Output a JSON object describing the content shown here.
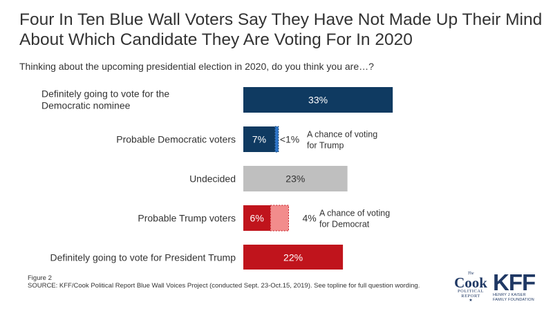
{
  "chart_data": {
    "type": "bar",
    "orientation": "horizontal",
    "title": "Four In Ten Blue Wall Voters Say They Have Not Made Up Their Mind About Which Candidate They Are Voting For In 2020",
    "subtitle": "Thinking about the upcoming presidential election in 2020, do you think you are…?",
    "xlim": [
      0,
      35
    ],
    "grid": false,
    "rows": [
      {
        "label": "Definitely going to vote for the Democratic nominee",
        "segments": [
          {
            "value": 33,
            "label": "33%",
            "color": "#0f3a61",
            "style": "solid"
          }
        ]
      },
      {
        "label": "Probable Democratic voters",
        "segments": [
          {
            "value": 7,
            "label": "7%",
            "color": "#0f3a61",
            "style": "solid"
          },
          {
            "value": 0.5,
            "label": "<1%",
            "color": "#2e75c9",
            "style": "dashed"
          }
        ],
        "annotation": [
          "A chance of voting",
          "for Trump"
        ]
      },
      {
        "label": "Undecided",
        "segments": [
          {
            "value": 23,
            "label": "23%",
            "color": "#bfbfbf",
            "style": "solid"
          }
        ]
      },
      {
        "label": "Probable Trump voters",
        "segments": [
          {
            "value": 6,
            "label": "6%",
            "color": "#c0141c",
            "style": "solid"
          },
          {
            "value": 4,
            "label": "4%",
            "color": "#f28c8c",
            "style": "dashed"
          }
        ],
        "annotation": [
          "A chance of voting",
          "for Democrat"
        ]
      },
      {
        "label": "Definitely going to vote for President Trump",
        "segments": [
          {
            "value": 22,
            "label": "22%",
            "color": "#c0141c",
            "style": "solid"
          }
        ]
      }
    ]
  },
  "footer": {
    "figure": "Figure 2",
    "source": "SOURCE: KFF/Cook Political Report Blue Wall Voices Project (conducted Sept. 23-Oct.15, 2019). See topline for full question wording."
  },
  "logos": {
    "cook": {
      "the": "The",
      "name": "Cook",
      "line1": "POLITICAL",
      "line2": "REPORT",
      "star": "★"
    },
    "kff": {
      "name": "KFF",
      "line1": "HENRY J KAISER",
      "line2": "FAMILY FOUNDATION"
    }
  }
}
